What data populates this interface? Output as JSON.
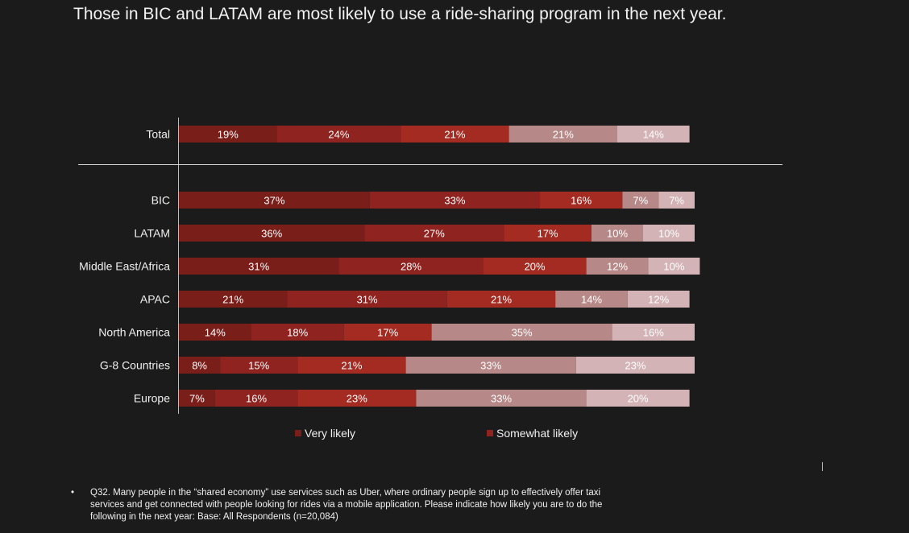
{
  "title": "Those in BIC and LATAM are most likely to use a ride-sharing program in the next year.",
  "chart_data": {
    "type": "bar",
    "orientation": "horizontal",
    "stacked": true,
    "categories": [
      "Total",
      "BIC",
      "LATAM",
      "Middle East/Africa",
      "APAC",
      "North America",
      "G-8 Countries",
      "Europe"
    ],
    "series": [
      {
        "name": "Very likely",
        "color": "#7a1e1a",
        "values": [
          19,
          37,
          36,
          31,
          21,
          14,
          8,
          7
        ]
      },
      {
        "name": "Somewhat likely",
        "color": "#8e2320",
        "values": [
          24,
          33,
          27,
          28,
          31,
          18,
          15,
          16
        ]
      },
      {
        "name": "",
        "color": "#a32b22",
        "values": [
          21,
          16,
          17,
          20,
          21,
          17,
          21,
          23
        ]
      },
      {
        "name": "",
        "color": "#b78888",
        "values": [
          21,
          7,
          10,
          12,
          14,
          35,
          33,
          33
        ]
      },
      {
        "name": "",
        "color": "#d3b3b5",
        "values": [
          14,
          7,
          10,
          10,
          12,
          16,
          23,
          20
        ]
      }
    ],
    "value_suffix": "%",
    "legend": [
      "Very likely",
      "Somewhat likely"
    ],
    "legend_position": "bottom",
    "xlim": [
      0,
      100
    ]
  },
  "footnote": {
    "bullet": "•",
    "text": "Q32.  Many people in the “shared economy” use services such as Uber, where ordinary people sign up to effectively offer taxi services and get connected with people looking for rides via a mobile application. Please indicate how likely you are to do the following in the next year: Base: All Respondents (n=20,084)"
  }
}
